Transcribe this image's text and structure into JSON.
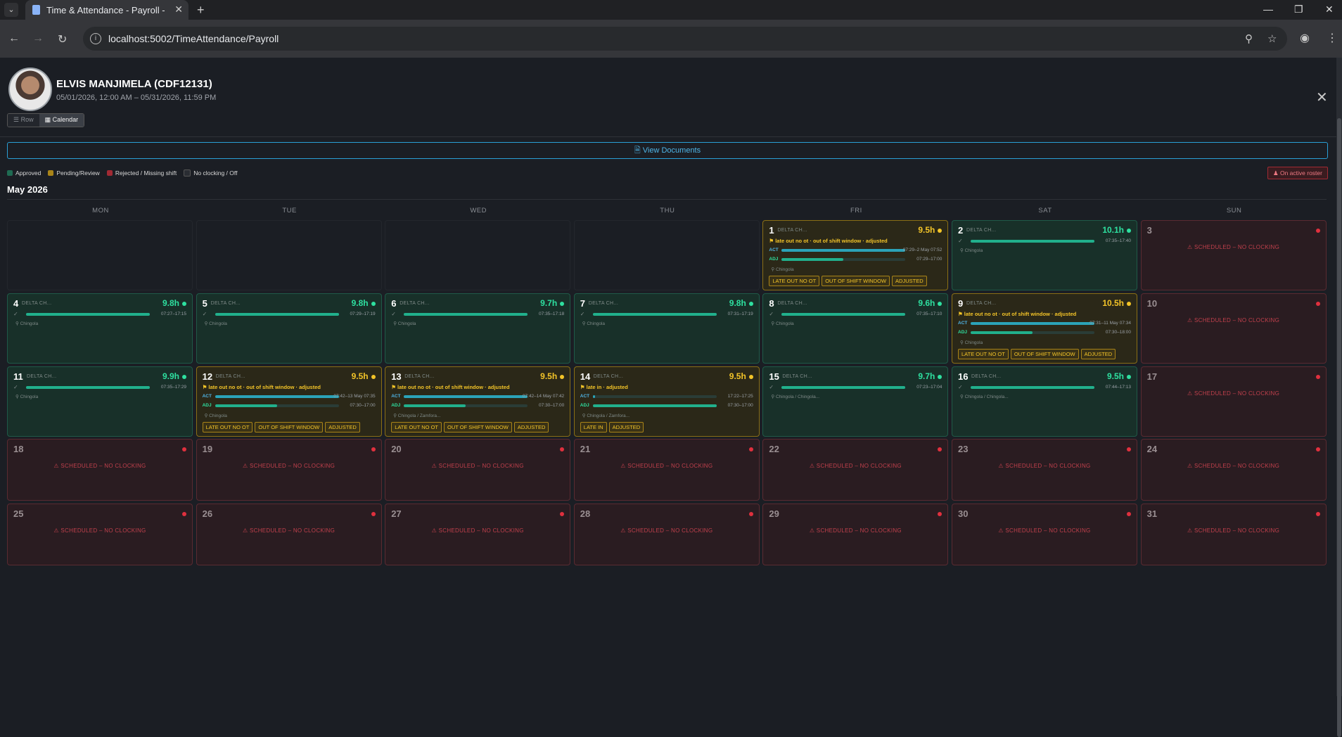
{
  "browser": {
    "tab_title": "Time & Attendance - Payroll - F",
    "url": "localhost:5002/TimeAttendance/Payroll"
  },
  "employee": {
    "name": "ELVIS MANJIMELA (CDF12131)",
    "range": "05/01/2026, 12:00 AM – 05/31/2026, 11:59 PM"
  },
  "view_toggle": {
    "row": "Row",
    "calendar": "Calendar"
  },
  "view_documents": "View Documents",
  "legend": {
    "approved": "Approved",
    "pending": "Pending/Review",
    "missing": "Rejected / Missing shift",
    "none": "No clocking / Off",
    "roster": "On active roster"
  },
  "colors": {
    "approved": "#21b08c",
    "pending": "#f3c428",
    "missing": "#e0303e",
    "none": "#3a3d44",
    "accent": "#2a9fd6"
  },
  "month_title": "May 2026",
  "weekdays": [
    "MON",
    "TUE",
    "WED",
    "THU",
    "FRI",
    "SAT",
    "SUN"
  ],
  "missing_text": "⚠ SCHEDULED – NO CLOCKING",
  "days": [
    {
      "day": "1",
      "status": "pending",
      "site": "DELTA CH...",
      "hours": "9.5h",
      "flags": "⚑ late out no ot · out of shift window · adjusted",
      "act_time": "07:29–2 May 07:52",
      "adj_time": "07:29–17:00",
      "act_fill": 1.0,
      "adj_fill": 0.5,
      "loc": "⚲ Chingola",
      "badges": [
        "LATE OUT NO OT",
        "OUT OF SHIFT WINDOW",
        "ADJUSTED"
      ]
    },
    {
      "day": "2",
      "status": "approved",
      "site": "DELTA CH...",
      "hours": "10.1h",
      "time": "07:35–17:40",
      "fill": 1.0,
      "loc": "⚲ Chingola"
    },
    {
      "day": "3",
      "status": "missing"
    },
    {
      "day": "4",
      "status": "approved",
      "site": "DELTA CH...",
      "hours": "9.8h",
      "time": "07:27–17:15",
      "fill": 1.0,
      "loc": "⚲ Chingola"
    },
    {
      "day": "5",
      "status": "approved",
      "site": "DELTA CH...",
      "hours": "9.8h",
      "time": "07:29–17:19",
      "fill": 1.0,
      "loc": "⚲ Chingola"
    },
    {
      "day": "6",
      "status": "approved",
      "site": "DELTA CH...",
      "hours": "9.7h",
      "time": "07:35–17:18",
      "fill": 1.0,
      "loc": "⚲ Chingola"
    },
    {
      "day": "7",
      "status": "approved",
      "site": "DELTA CH...",
      "hours": "9.8h",
      "time": "07:31–17:19",
      "fill": 1.0,
      "loc": "⚲ Chingola"
    },
    {
      "day": "8",
      "status": "approved",
      "site": "DELTA CH...",
      "hours": "9.6h",
      "time": "07:35–17:10",
      "fill": 1.0,
      "loc": "⚲ Chingola"
    },
    {
      "day": "9",
      "status": "pending",
      "site": "DELTA CH...",
      "hours": "10.5h",
      "flags": "⚑ late out no ot · out of shift window · adjusted",
      "act_time": "07:31–11 May 07:34",
      "adj_time": "07:30–18:00",
      "act_fill": 1.0,
      "adj_fill": 0.5,
      "loc": "⚲ Chingola",
      "badges": [
        "LATE OUT NO OT",
        "OUT OF SHIFT WINDOW",
        "ADJUSTED"
      ]
    },
    {
      "day": "10",
      "status": "missing"
    },
    {
      "day": "11",
      "status": "approved",
      "site": "DELTA CH...",
      "hours": "9.9h",
      "time": "07:35–17:29",
      "fill": 1.0,
      "loc": "⚲ Chingola"
    },
    {
      "day": "12",
      "status": "pending",
      "site": "DELTA CH...",
      "hours": "9.5h",
      "flags": "⚑ late out no ot · out of shift window · adjusted",
      "act_time": "07:42–13 May 07:35",
      "adj_time": "07:30–17:00",
      "act_fill": 1.0,
      "adj_fill": 0.5,
      "loc": "⚲ Chingola",
      "badges": [
        "LATE OUT NO OT",
        "OUT OF SHIFT WINDOW",
        "ADJUSTED"
      ]
    },
    {
      "day": "13",
      "status": "pending",
      "site": "DELTA CH...",
      "hours": "9.5h",
      "flags": "⚑ late out no ot · out of shift window · adjusted",
      "act_time": "07:42–14 May 07:42",
      "adj_time": "07:30–17:00",
      "act_fill": 1.0,
      "adj_fill": 0.5,
      "loc": "⚲ Chingola / Zamfora...",
      "badges": [
        "LATE OUT NO OT",
        "OUT OF SHIFT WINDOW",
        "ADJUSTED"
      ]
    },
    {
      "day": "14",
      "status": "pending",
      "site": "DELTA CH...",
      "hours": "9.5h",
      "flags": "⚑ late in · adjusted",
      "act_time": "17:22–17:25",
      "adj_time": "07:30–17:00",
      "act_fill": 0.02,
      "adj_fill": 1.0,
      "loc": "⚲ Chingola / Zamfora...",
      "badges": [
        "LATE IN",
        "ADJUSTED"
      ]
    },
    {
      "day": "15",
      "status": "approved",
      "site": "DELTA CH...",
      "hours": "9.7h",
      "time": "07:23–17:04",
      "fill": 1.0,
      "loc": "⚲ Chingola / Chingola..."
    },
    {
      "day": "16",
      "status": "approved",
      "site": "DELTA CH...",
      "hours": "9.5h",
      "time": "07:44–17:13",
      "fill": 1.0,
      "loc": "⚲ Chingola / Chingola..."
    },
    {
      "day": "17",
      "status": "missing"
    },
    {
      "day": "18",
      "status": "missing"
    },
    {
      "day": "19",
      "status": "missing"
    },
    {
      "day": "20",
      "status": "missing"
    },
    {
      "day": "21",
      "status": "missing"
    },
    {
      "day": "22",
      "status": "missing"
    },
    {
      "day": "23",
      "status": "missing"
    },
    {
      "day": "24",
      "status": "missing"
    },
    {
      "day": "25",
      "status": "missing"
    },
    {
      "day": "26",
      "status": "missing"
    },
    {
      "day": "27",
      "status": "missing"
    },
    {
      "day": "28",
      "status": "missing"
    },
    {
      "day": "29",
      "status": "missing"
    },
    {
      "day": "30",
      "status": "missing"
    },
    {
      "day": "31",
      "status": "missing"
    }
  ]
}
